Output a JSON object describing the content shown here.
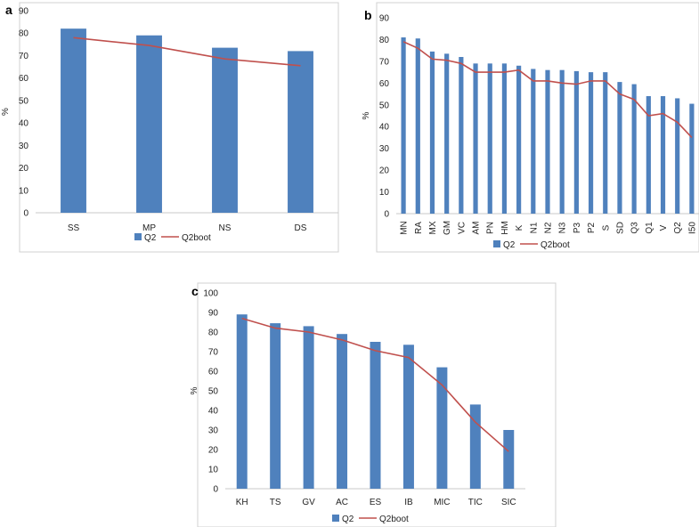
{
  "colors": {
    "bar": "#4f81bd",
    "line": "#c0504d"
  },
  "legend": {
    "bar_label": "Q2",
    "line_label": "Q2boot"
  },
  "chart_data": [
    {
      "panel": "a",
      "type": "bar",
      "ylabel": "%",
      "ylim": [
        0,
        90
      ],
      "ytick_step": 10,
      "categories": [
        "SS",
        "MP",
        "NS",
        "DS"
      ],
      "series": [
        {
          "name": "Q2",
          "type": "bar",
          "values": [
            82,
            79,
            73.5,
            72
          ]
        },
        {
          "name": "Q2boot",
          "type": "line",
          "values": [
            78,
            74.5,
            68.5,
            65.5
          ]
        }
      ]
    },
    {
      "panel": "b",
      "type": "bar",
      "ylabel": "%",
      "ylim": [
        0,
        90
      ],
      "ytick_step": 10,
      "rotate_xticks": true,
      "categories": [
        "MN",
        "RA",
        "MX",
        "GM",
        "VC",
        "AM",
        "PN",
        "HM",
        "K",
        "N1",
        "N2",
        "N3",
        "P3",
        "P2",
        "S",
        "SD",
        "Q3",
        "Q1",
        "V",
        "Q2",
        "I50"
      ],
      "series": [
        {
          "name": "Q2",
          "type": "bar",
          "values": [
            81,
            80.5,
            74.5,
            73.5,
            72,
            69,
            69,
            69,
            68,
            66.5,
            66,
            66,
            65.5,
            65,
            65,
            60.5,
            59.5,
            54,
            54,
            53,
            50.5
          ]
        },
        {
          "name": "Q2boot",
          "type": "line",
          "values": [
            79,
            76,
            71,
            70.5,
            69,
            65,
            65,
            65,
            66,
            61,
            61,
            60,
            59.5,
            61,
            61,
            55,
            52.5,
            45,
            46,
            42,
            35
          ]
        }
      ]
    },
    {
      "panel": "c",
      "type": "bar",
      "ylabel": "%",
      "ylim": [
        0,
        100
      ],
      "ytick_step": 10,
      "categories": [
        "KH",
        "TS",
        "GV",
        "AC",
        "ES",
        "IB",
        "MIC",
        "TIC",
        "SIC"
      ],
      "series": [
        {
          "name": "Q2",
          "type": "bar",
          "values": [
            89,
            84.5,
            83,
            79,
            75,
            73.5,
            62,
            43,
            30
          ]
        },
        {
          "name": "Q2boot",
          "type": "line",
          "values": [
            87,
            82,
            80,
            76,
            70.5,
            67,
            53,
            34,
            19
          ]
        }
      ]
    }
  ]
}
